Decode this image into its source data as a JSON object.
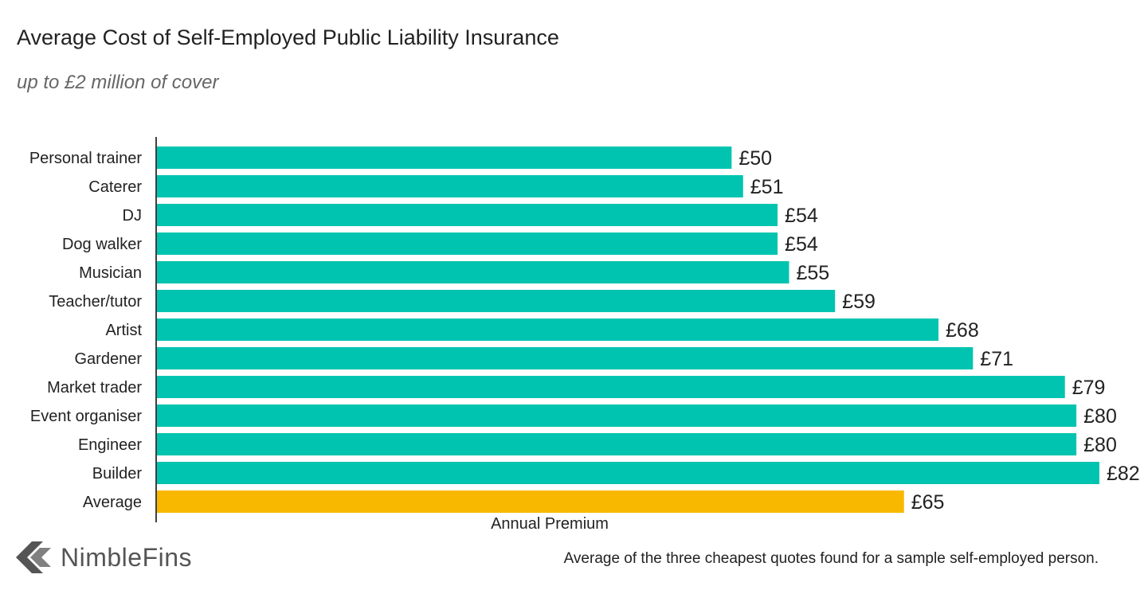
{
  "colors": {
    "bar": "#00c4b0",
    "average_bar": "#f8b800",
    "axis": "#000000",
    "logo": "#555555"
  },
  "logo": {
    "text": "NimbleFins",
    "icon": "nimblefins-logo-icon"
  },
  "footnote": "Average of the three cheapest quotes found for a sample self-employed person.",
  "chart_data": {
    "type": "bar",
    "orientation": "horizontal",
    "title": "Average Cost of Self-Employed Public Liability Insurance",
    "subtitle": "up to £2 million of cover",
    "xlabel": "Annual Premium",
    "ylabel": "",
    "xlim": [
      0,
      82
    ],
    "value_prefix": "£",
    "grid": false,
    "categories": [
      "Personal trainer",
      "Caterer",
      "DJ",
      "Dog walker",
      "Musician",
      "Teacher/tutor",
      "Artist",
      "Gardener",
      "Market trader",
      "Event organiser",
      "Engineer",
      "Builder",
      "Average"
    ],
    "values": [
      50,
      51,
      54,
      54,
      55,
      59,
      68,
      71,
      79,
      80,
      80,
      82,
      65
    ],
    "highlight_category": "Average"
  }
}
